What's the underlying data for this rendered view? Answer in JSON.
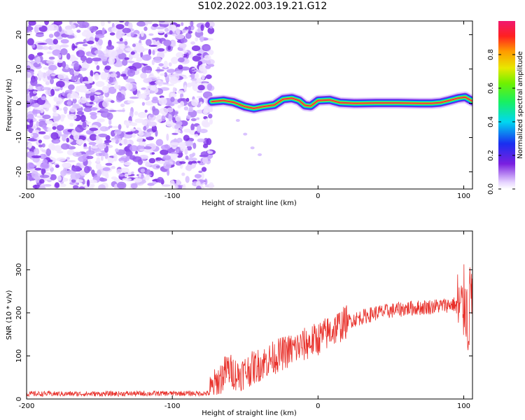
{
  "title": "S102.2022.003.19.21.G12",
  "colors": {
    "snr_line": "#e8302a",
    "frame": "#000000",
    "noise_purple": "#8a3cf0",
    "trace_core": "#e8304a"
  },
  "chart_data": [
    {
      "type": "heatmap",
      "xlabel": "Height of straight line (km)",
      "ylabel": "Frequency (Hz)",
      "xlim": [
        -200,
        106
      ],
      "ylim": [
        -25,
        24
      ],
      "xticks": [
        "-200",
        "-100",
        "0",
        "100"
      ],
      "xtick_values": [
        -200,
        -100,
        0,
        100
      ],
      "yticks": [
        "20",
        "10",
        "0",
        "-10",
        "-20"
      ],
      "ytick_values": [
        20,
        10,
        0,
        -10,
        -20
      ],
      "colorbar": {
        "label": "Normalized spectral amplitude",
        "ticks": [
          "0.0",
          "0.2",
          "0.4",
          "0.6",
          "0.8"
        ],
        "tick_values": [
          0.0,
          0.2,
          0.4,
          0.6,
          0.8
        ],
        "range": [
          0,
          1
        ],
        "colormap": "rainbow-white-low"
      },
      "noise_region_x": [
        -200,
        -73
      ],
      "trace": {
        "x": [
          -73,
          -65,
          -58,
          -50,
          -44,
          -38,
          -30,
          -24,
          -18,
          -13,
          -9,
          -5,
          0,
          8,
          15,
          25,
          40,
          55,
          70,
          78,
          84,
          90,
          96,
          101,
          106
        ],
        "freq": [
          0.5,
          0.8,
          0.3,
          -1.0,
          -1.5,
          -1.0,
          -0.5,
          1.2,
          1.5,
          0.8,
          -0.6,
          -0.8,
          0.8,
          1.0,
          0.2,
          0.0,
          0.1,
          0.1,
          0.0,
          0.0,
          0.2,
          0.8,
          1.5,
          1.8,
          0.6
        ]
      },
      "faint_trace": {
        "x": [
          -55,
          -50,
          -45,
          -40
        ],
        "freq": [
          -5,
          -9,
          -13,
          -15
        ]
      }
    },
    {
      "type": "line",
      "xlabel": "Height of straight line (km)",
      "ylabel": "SNR (10 * v/v)",
      "xlim": [
        -200,
        106
      ],
      "ylim": [
        0,
        390
      ],
      "xticks": [
        "-200",
        "-100",
        "0",
        "100"
      ],
      "xtick_values": [
        -200,
        -100,
        0,
        100
      ],
      "yticks": [
        "0",
        "100",
        "200",
        "300"
      ],
      "ytick_values": [
        0,
        100,
        200,
        300
      ],
      "series": [
        {
          "x": [
            -200,
            -150,
            -100,
            -75,
            -62,
            -55,
            -40,
            -25,
            -10,
            0,
            10,
            20,
            30,
            40,
            50,
            60,
            70,
            80,
            88,
            93,
            96,
            99,
            101,
            103,
            105
          ],
          "values": [
            12,
            12,
            13,
            13,
            70,
            55,
            80,
            105,
            125,
            140,
            160,
            180,
            190,
            200,
            205,
            210,
            212,
            215,
            218,
            220,
            215,
            200,
            240,
            170,
            260
          ]
        }
      ]
    }
  ]
}
